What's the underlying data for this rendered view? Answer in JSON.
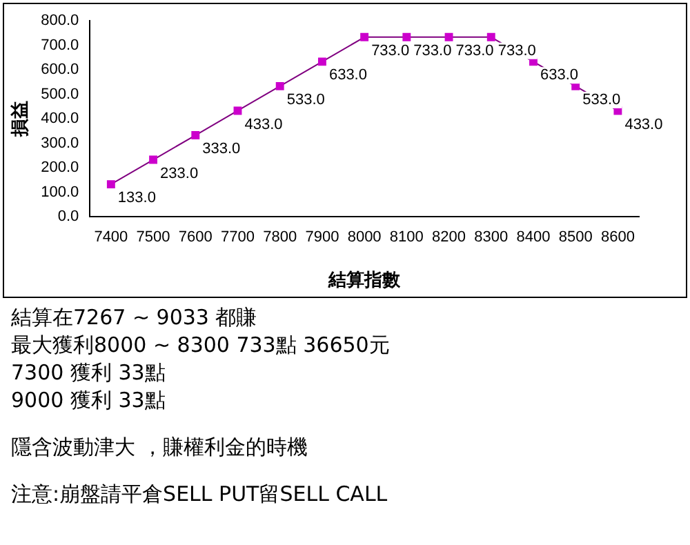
{
  "chart_data": {
    "type": "line",
    "xlabel": "結算指數",
    "ylabel": "損益",
    "categories": [
      "7400",
      "7500",
      "7600",
      "7700",
      "7800",
      "7900",
      "8000",
      "8100",
      "8200",
      "8300",
      "8400",
      "8500",
      "8600"
    ],
    "series": [
      {
        "color": "#cc00cc",
        "values": [
          133,
          233,
          333,
          433,
          533,
          633,
          733,
          733,
          733,
          733,
          633,
          533,
          433
        ],
        "value_labels": [
          "133.0",
          "233.0",
          "333.0",
          "433.0",
          "533.0",
          "633.0",
          "733.0",
          "733.0",
          "733.0",
          "733.0",
          "633.0",
          "533.0",
          "433.0"
        ]
      }
    ],
    "ylim": [
      0,
      800
    ],
    "yticks": [
      {
        "value": 0,
        "label": "0.0"
      },
      {
        "value": 100,
        "label": "100.0"
      },
      {
        "value": 200,
        "label": "200.0"
      },
      {
        "value": 300,
        "label": "300.0"
      },
      {
        "value": 400,
        "label": "400.0"
      },
      {
        "value": 500,
        "label": "500.0"
      },
      {
        "value": 600,
        "label": "600.0"
      },
      {
        "value": 700,
        "label": "700.0"
      },
      {
        "value": 800,
        "label": "800.0"
      }
    ],
    "grid": false,
    "legend": false,
    "marker": "square",
    "line_style": "solid",
    "annotations": [
      "結算在7267 ~ 9033 都賺",
      "最大獲利8000 ~ 8300 733點 36650元",
      "7300 獲利 33點",
      "9000 獲利 33點",
      "隱含波動津大 ，賺權利金的時機",
      "注意:崩盤請平倉SELL PUT留SELL CALL"
    ]
  }
}
